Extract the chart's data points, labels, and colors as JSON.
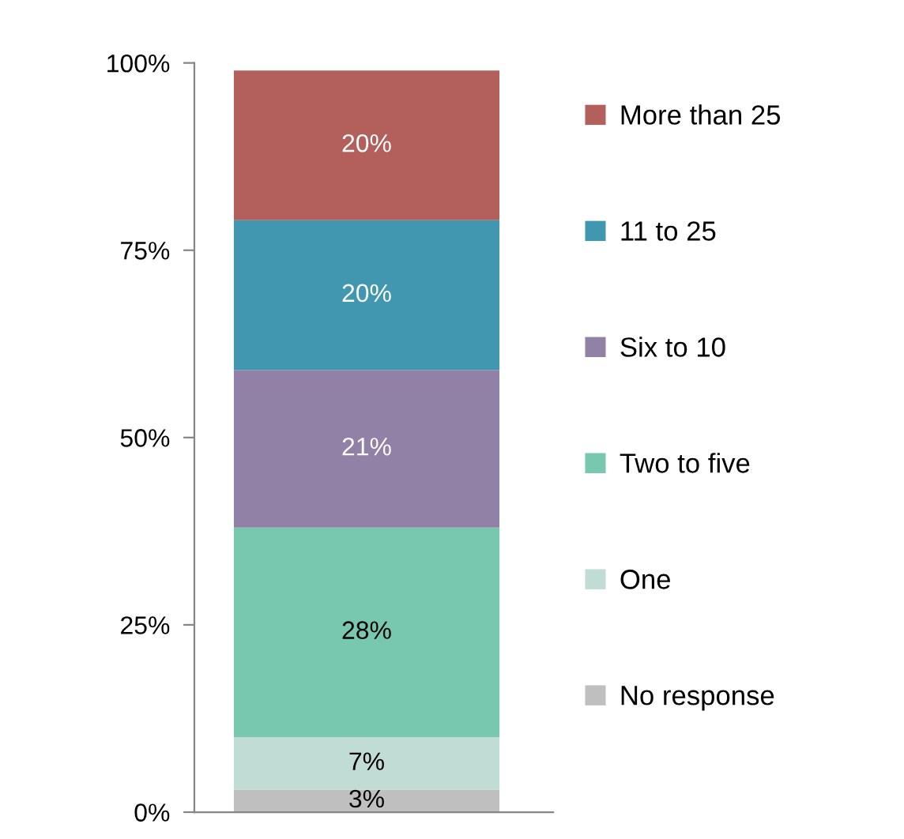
{
  "chart_data": {
    "type": "bar",
    "stacked": true,
    "categories": [
      null
    ],
    "series": [
      {
        "name": "No response",
        "color": "#bfbfbf",
        "values": [
          3
        ]
      },
      {
        "name": "One",
        "color": "#c0dcd4",
        "values": [
          7
        ]
      },
      {
        "name": "Two to five",
        "color": "#78c8b0",
        "values": [
          28
        ]
      },
      {
        "name": "Six to 10",
        "color": "#9181a6",
        "values": [
          21
        ]
      },
      {
        "name": "11 to 25",
        "color": "#4197b0",
        "values": [
          20
        ]
      },
      {
        "name": "More than 25",
        "color": "#b35f5c",
        "values": [
          20
        ]
      }
    ],
    "ylim": [
      0,
      100
    ],
    "yticks": [
      {
        "value": 0,
        "label": "0%"
      },
      {
        "value": 25,
        "label": "25%"
      },
      {
        "value": 50,
        "label": "50%"
      },
      {
        "value": 75,
        "label": "75%"
      },
      {
        "value": 100,
        "label": "100%"
      }
    ],
    "value_labels": [
      [
        "3%"
      ],
      [
        "7%"
      ],
      [
        "28%"
      ],
      [
        "21%"
      ],
      [
        "20%"
      ],
      [
        "20%"
      ]
    ],
    "legend": "right",
    "grid": false
  }
}
